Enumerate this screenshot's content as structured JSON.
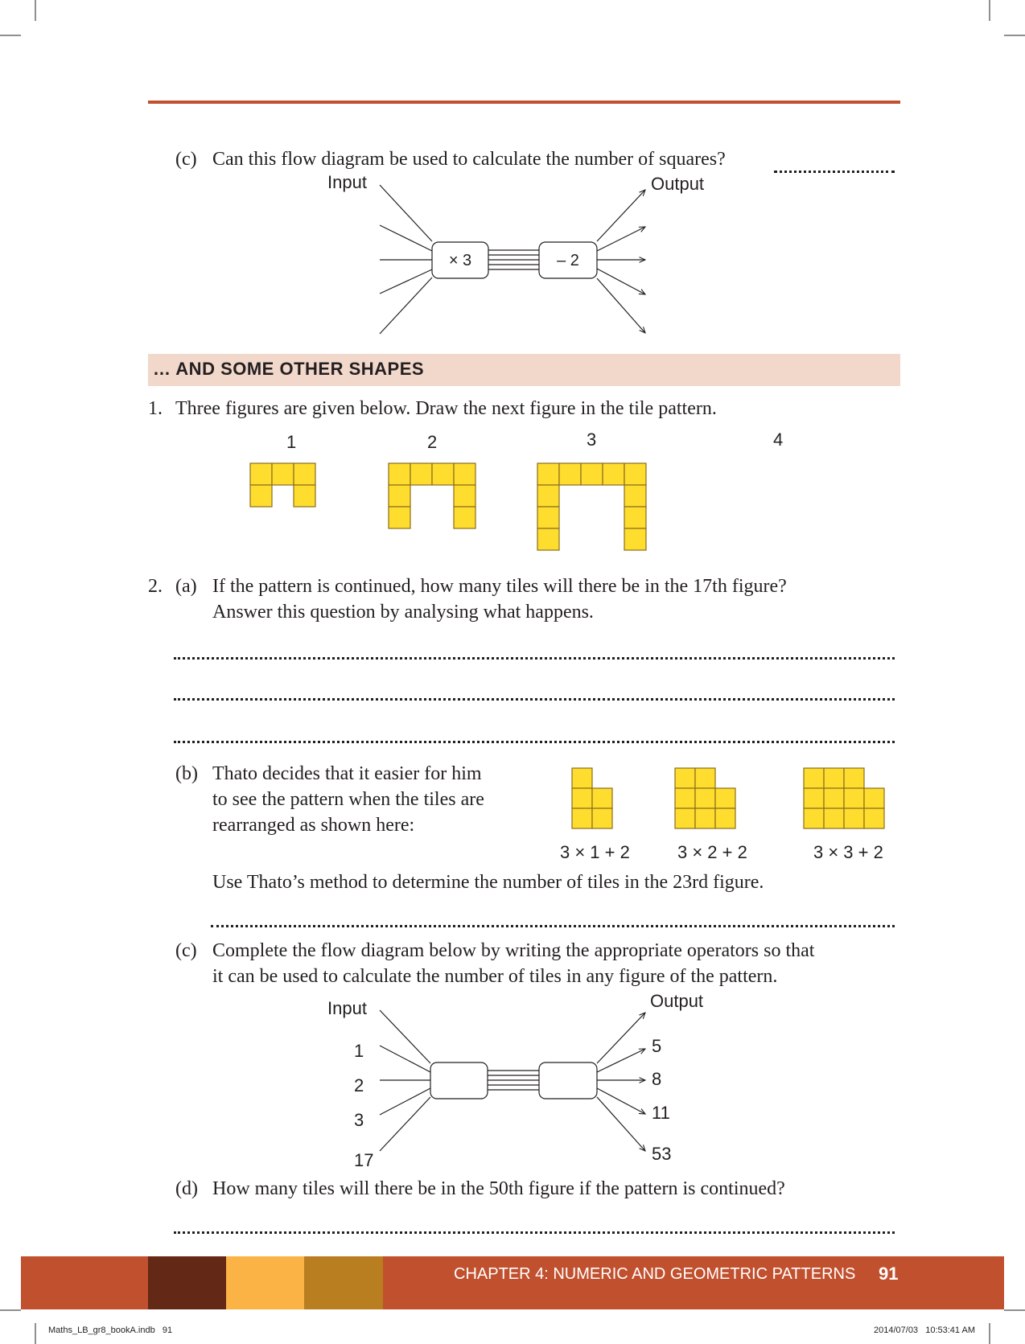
{
  "question_c1": {
    "label": "(c)",
    "text": "Can this flow diagram be used to calculate the number of squares?",
    "input_label": "Input",
    "output_label": "Output",
    "op1": "× 3",
    "op2": "– 2"
  },
  "section": {
    "heading": "… AND SOME OTHER SHAPES",
    "band_color": "#f2d7cb"
  },
  "q1": {
    "number": "1.",
    "text": "Three figures are given below. Draw the next figure in the tile pattern.",
    "figure_labels": [
      "1",
      "2",
      "3",
      "4"
    ]
  },
  "q2a": {
    "number": "2.",
    "label": "(a)",
    "line1": "If the pattern is continued, how many tiles will there be in the 17th figure?",
    "line2": "Answer this question by analysing what happens."
  },
  "q2b": {
    "label": "(b)",
    "line1": "Thato decides that it easier for him",
    "line2": "to see the pattern when the tiles are",
    "line3": "rearranged as shown here:",
    "expressions": [
      "3 × 1 + 2",
      "3 × 2 + 2",
      "3 × 3 + 2"
    ],
    "instruction": "Use Thato’s method to determine the number of tiles in the 23rd figure."
  },
  "q2c": {
    "label": "(c)",
    "line1": "Complete the flow diagram below by writing the appropriate operators so that",
    "line2": "it can be used to calculate the number of tiles in any figure of the pattern.",
    "input_label": "Input",
    "output_label": "Output",
    "inputs": [
      "1",
      "2",
      "3",
      "17"
    ],
    "outputs": [
      "5",
      "8",
      "11",
      "53"
    ]
  },
  "q2d": {
    "label": "(d)",
    "text": "How many tiles will there be in the 50th figure if the pattern is continued?"
  },
  "footer": {
    "chapter": "CHAPTER 4: NUMERIC AND GEOMETRIC PATTERNS",
    "page": "91",
    "file": "Maths_LB_gr8_bookA.indb   91",
    "timestamp": "2014/07/03   10:53:41 AM",
    "colors": {
      "band": "#c1502e",
      "dark": "#632816",
      "yellow": "#fbb345",
      "ochre": "#b97e20"
    }
  },
  "colors": {
    "rule": "#c1502e",
    "tile": "#fedd2f",
    "tile_border": "#8a6d1c"
  }
}
